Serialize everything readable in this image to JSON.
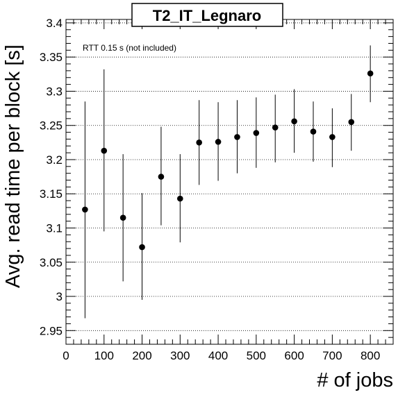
{
  "chart_data": {
    "type": "scatter",
    "title": "T2_IT_Legnaro",
    "xlabel": "# of jobs",
    "ylabel": "Avg. read time per block [s]",
    "annotation": "RTT 0.15 s (not included)",
    "xlim": [
      0,
      860
    ],
    "ylim": [
      2.93,
      3.405
    ],
    "x_ticks": [
      0,
      100,
      200,
      300,
      400,
      500,
      600,
      700,
      800
    ],
    "x_tick_labels": [
      "0",
      "100",
      "200",
      "300",
      "400",
      "500",
      "600",
      "700",
      "800"
    ],
    "y_ticks": [
      2.95,
      3.0,
      3.05,
      3.1,
      3.15,
      3.2,
      3.25,
      3.3,
      3.35,
      3.4
    ],
    "y_tick_labels": [
      "2.95",
      "3",
      "3.05",
      "3.1",
      "3.15",
      "3.2",
      "3.25",
      "3.3",
      "3.35",
      "3.4"
    ],
    "grid": "horizontal-dotted",
    "series": [
      {
        "x": [
          50,
          100,
          150,
          200,
          250,
          300,
          350,
          400,
          450,
          500,
          550,
          600,
          650,
          700,
          750,
          800
        ],
        "y": [
          3.127,
          3.213,
          3.115,
          3.072,
          3.175,
          3.143,
          3.225,
          3.226,
          3.233,
          3.239,
          3.247,
          3.256,
          3.241,
          3.233,
          3.255,
          3.326
        ],
        "err_low": [
          2.968,
          3.095,
          3.022,
          2.995,
          3.104,
          3.079,
          3.163,
          3.169,
          3.18,
          3.188,
          3.196,
          3.21,
          3.197,
          3.189,
          3.213,
          3.284
        ],
        "err_high": [
          3.285,
          3.332,
          3.208,
          3.151,
          3.248,
          3.208,
          3.287,
          3.284,
          3.287,
          3.291,
          3.295,
          3.303,
          3.285,
          3.275,
          3.296,
          3.367
        ]
      }
    ]
  }
}
